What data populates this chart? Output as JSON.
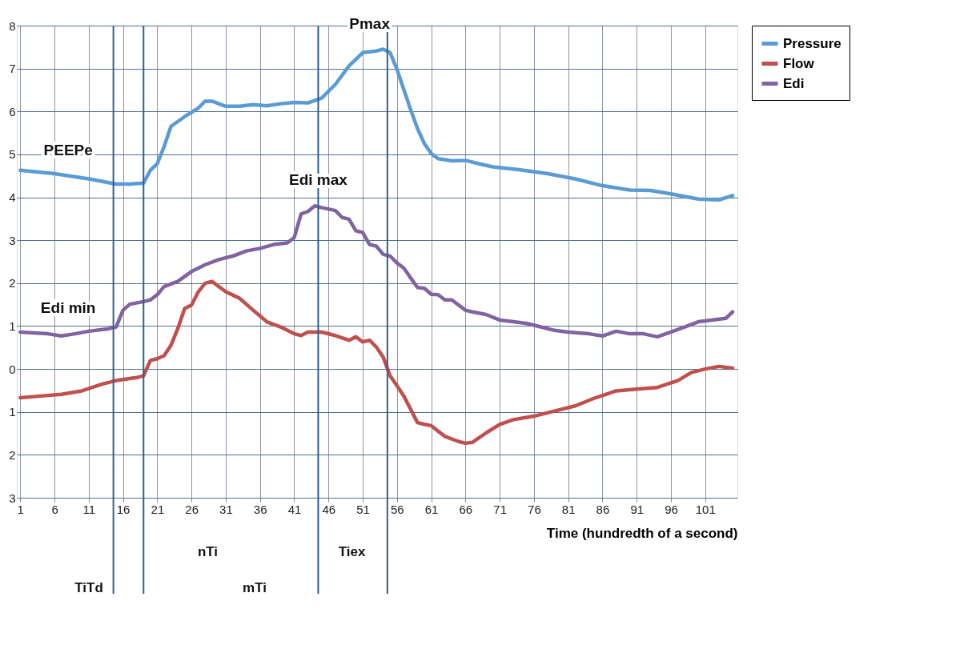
{
  "chart_data": {
    "type": "line",
    "xlabel": "Time (hundredth of a second)",
    "xlim": [
      0.5,
      105.7
    ],
    "xticks": [
      1,
      6,
      11,
      16,
      21,
      26,
      31,
      36,
      41,
      46,
      51,
      56,
      61,
      66,
      71,
      76,
      81,
      86,
      91,
      96,
      101
    ],
    "ylim": [
      -3,
      8
    ],
    "yticks": [
      {
        "value": -3,
        "label": "3"
      },
      {
        "value": -2,
        "label": "2"
      },
      {
        "value": -1,
        "label": "1"
      },
      0,
      1,
      2,
      3,
      4,
      5,
      6,
      7,
      8
    ],
    "grid": true,
    "legend": "right",
    "series": [
      {
        "name": "Pressure",
        "color": "#5b9bd5",
        "x": [
          1,
          6,
          11,
          15,
          17,
          19,
          20,
          21,
          22,
          23,
          25,
          27,
          28,
          29,
          31,
          33,
          35,
          37,
          39,
          41,
          43,
          45,
          47,
          49,
          51,
          53,
          54,
          55,
          56,
          57,
          58,
          59,
          60,
          61,
          62,
          64,
          66,
          68,
          70,
          74,
          78,
          82,
          86,
          90,
          93,
          96,
          100,
          103,
          105
        ],
        "values": [
          4.63,
          4.55,
          4.43,
          4.31,
          4.31,
          4.33,
          4.63,
          4.78,
          5.18,
          5.65,
          5.88,
          6.08,
          6.24,
          6.24,
          6.12,
          6.12,
          6.16,
          6.13,
          6.18,
          6.21,
          6.2,
          6.31,
          6.63,
          7.06,
          7.37,
          7.41,
          7.45,
          7.37,
          6.98,
          6.51,
          6.04,
          5.6,
          5.25,
          5.02,
          4.9,
          4.85,
          4.86,
          4.78,
          4.71,
          4.64,
          4.55,
          4.43,
          4.27,
          4.17,
          4.16,
          4.08,
          3.96,
          3.94,
          4.04
        ]
      },
      {
        "name": "Flow",
        "color": "#c0504d",
        "x": [
          1,
          4,
          7,
          10,
          13,
          15,
          18,
          19,
          20,
          21,
          22,
          23,
          24,
          25,
          26,
          27,
          28,
          29,
          30,
          31,
          33,
          35,
          37,
          39,
          41,
          42,
          43,
          45,
          47,
          49,
          50,
          51,
          52,
          53,
          54,
          55,
          56,
          57,
          58,
          59,
          60,
          61,
          62,
          63,
          65,
          66,
          67,
          69,
          71,
          73,
          76,
          79,
          82,
          85,
          88,
          91,
          94,
          97,
          99,
          101,
          103,
          105
        ],
        "values": [
          -0.67,
          -0.63,
          -0.59,
          -0.51,
          -0.35,
          -0.27,
          -0.2,
          -0.16,
          0.2,
          0.24,
          0.31,
          0.55,
          0.94,
          1.41,
          1.49,
          1.8,
          2.0,
          2.04,
          1.92,
          1.8,
          1.65,
          1.37,
          1.1,
          0.98,
          0.82,
          0.78,
          0.86,
          0.86,
          0.78,
          0.67,
          0.75,
          0.63,
          0.67,
          0.51,
          0.27,
          -0.16,
          -0.39,
          -0.63,
          -0.94,
          -1.25,
          -1.29,
          -1.32,
          -1.45,
          -1.57,
          -1.69,
          -1.73,
          -1.71,
          -1.49,
          -1.29,
          -1.18,
          -1.1,
          -0.98,
          -0.86,
          -0.67,
          -0.51,
          -0.47,
          -0.43,
          -0.27,
          -0.08,
          0,
          0.06,
          0.02
        ]
      },
      {
        "name": "Edi",
        "color": "#8064a2",
        "x": [
          1,
          5,
          7,
          9,
          11,
          14,
          15,
          16,
          17,
          19,
          20,
          21,
          22,
          24,
          26,
          28,
          30,
          32,
          34,
          36,
          38,
          40,
          41,
          42,
          43,
          44,
          45,
          47,
          48,
          49,
          50,
          51,
          52,
          53,
          54,
          55,
          56,
          57,
          58,
          59,
          60,
          61,
          62,
          63,
          64,
          65,
          66,
          67,
          69,
          71,
          73,
          75,
          77,
          79,
          81,
          84,
          86,
          88,
          90,
          92,
          94,
          96,
          98,
          100,
          102,
          104,
          105
        ],
        "values": [
          0.86,
          0.82,
          0.77,
          0.82,
          0.88,
          0.94,
          0.98,
          1.37,
          1.51,
          1.57,
          1.61,
          1.73,
          1.92,
          2.04,
          2.27,
          2.43,
          2.55,
          2.63,
          2.75,
          2.81,
          2.9,
          2.94,
          3.06,
          3.61,
          3.67,
          3.8,
          3.76,
          3.69,
          3.53,
          3.49,
          3.22,
          3.18,
          2.9,
          2.86,
          2.67,
          2.63,
          2.47,
          2.35,
          2.12,
          1.9,
          1.88,
          1.74,
          1.73,
          1.61,
          1.61,
          1.49,
          1.37,
          1.33,
          1.27,
          1.14,
          1.1,
          1.06,
          0.98,
          0.9,
          0.86,
          0.82,
          0.77,
          0.88,
          0.82,
          0.82,
          0.75,
          0.86,
          0.98,
          1.1,
          1.14,
          1.18,
          1.33
        ]
      }
    ],
    "ref_lines": [
      {
        "axis": "x",
        "value": 14.6,
        "color": "#2e5f95"
      },
      {
        "axis": "x",
        "value": 19,
        "color": "#2e5f95"
      },
      {
        "axis": "x",
        "value": 44.5,
        "color": "#2e5f95"
      },
      {
        "axis": "x",
        "value": 54.6,
        "color": "#2e5f95"
      }
    ],
    "annotations": [
      {
        "text": "PEEPe",
        "x": 8,
        "y": 4.5
      },
      {
        "text": "Edi min",
        "x": 8,
        "y": 0.82
      },
      {
        "text": "Edi max",
        "x": 44.5,
        "y": 3.8
      },
      {
        "text": "Pmax",
        "x": 52,
        "y": 7.45
      },
      "nTi",
      "TiTd",
      "Tiex",
      "mTi"
    ]
  }
}
